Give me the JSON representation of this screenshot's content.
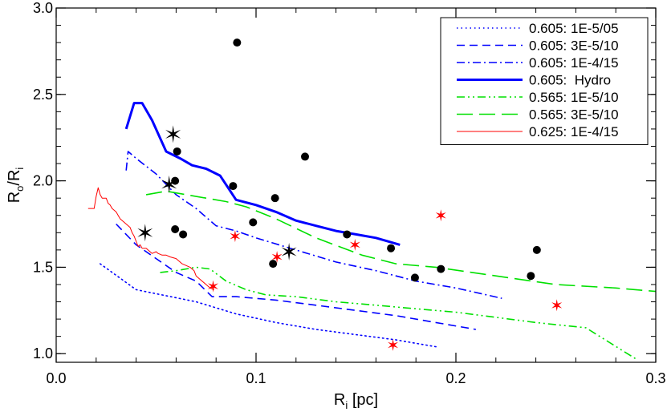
{
  "chart_data": {
    "type": "line",
    "title": "",
    "xlabel_main": "R",
    "xlabel_sub": "i",
    "xlabel_unit": " [pc]",
    "ylabel_num": "R",
    "ylabel_num_sub": "o",
    "ylabel_sep": "/",
    "ylabel_den": "R",
    "ylabel_den_sub": "i",
    "xlim": [
      0.0,
      0.3
    ],
    "ylim": [
      0.95,
      3.0
    ],
    "x_ticks": [
      0.0,
      0.1,
      0.2,
      0.3
    ],
    "x_tick_labels": [
      "0.0",
      "0.1",
      "0.2",
      "0.3"
    ],
    "y_ticks": [
      1.0,
      1.5,
      2.0,
      2.5,
      3.0
    ],
    "y_tick_labels": [
      "1.0",
      "1.5",
      "2.0",
      "2.5",
      "3.0"
    ],
    "grid": false,
    "legend_position": "top-right",
    "series": [
      {
        "name": "0.605: 1E-5/05",
        "color": "#0000ff",
        "style": "dotted",
        "width": 1.6,
        "x": [
          0.022,
          0.04,
          0.07,
          0.09,
          0.11,
          0.13,
          0.15,
          0.17,
          0.19
        ],
        "y": [
          1.52,
          1.37,
          1.3,
          1.23,
          1.18,
          1.14,
          1.11,
          1.08,
          1.04
        ]
      },
      {
        "name": "0.605: 3E-5/10",
        "color": "#0000ff",
        "style": "dashed",
        "width": 1.6,
        "x": [
          0.03,
          0.04,
          0.05,
          0.06,
          0.07,
          0.078,
          0.09,
          0.11,
          0.13,
          0.15,
          0.17,
          0.19,
          0.21
        ],
        "y": [
          1.75,
          1.63,
          1.55,
          1.47,
          1.42,
          1.33,
          1.33,
          1.31,
          1.28,
          1.25,
          1.22,
          1.18,
          1.14
        ]
      },
      {
        "name": "0.605: 1E-4/15",
        "color": "#0000ff",
        "style": "dashdot",
        "width": 1.6,
        "x": [
          0.035,
          0.036,
          0.04,
          0.05,
          0.06,
          0.07,
          0.08,
          0.09,
          0.1,
          0.12,
          0.14,
          0.16,
          0.18,
          0.2,
          0.223
        ],
        "y": [
          2.06,
          2.17,
          2.13,
          2.04,
          1.92,
          1.84,
          1.74,
          1.71,
          1.67,
          1.6,
          1.53,
          1.48,
          1.42,
          1.38,
          1.32
        ]
      },
      {
        "name": "0.605:  Hydro",
        "color": "#0000ff",
        "style": "solid",
        "width": 3,
        "x": [
          0.035,
          0.039,
          0.043,
          0.048,
          0.055,
          0.062,
          0.068,
          0.075,
          0.082,
          0.09,
          0.1,
          0.11,
          0.12,
          0.13,
          0.14,
          0.15,
          0.16,
          0.172
        ],
        "y": [
          2.3,
          2.45,
          2.45,
          2.35,
          2.17,
          2.13,
          2.09,
          2.07,
          2.03,
          1.89,
          1.86,
          1.82,
          1.77,
          1.74,
          1.71,
          1.69,
          1.67,
          1.63
        ]
      },
      {
        "name": "0.565: 1E-5/10",
        "color": "#00e000",
        "style": "dashdotdot",
        "width": 1.6,
        "x": [
          0.052,
          0.06,
          0.07,
          0.077,
          0.085,
          0.095,
          0.105,
          0.12,
          0.14,
          0.16,
          0.18,
          0.2,
          0.22,
          0.24,
          0.265,
          0.29
        ],
        "y": [
          1.47,
          1.48,
          1.5,
          1.49,
          1.42,
          1.37,
          1.34,
          1.33,
          1.3,
          1.28,
          1.26,
          1.24,
          1.21,
          1.18,
          1.15,
          0.97
        ]
      },
      {
        "name": "0.565: 3E-5/10",
        "color": "#00e000",
        "style": "longdash",
        "width": 1.6,
        "x": [
          0.045,
          0.055,
          0.065,
          0.075,
          0.085,
          0.095,
          0.11,
          0.13,
          0.153,
          0.17,
          0.19,
          0.22,
          0.25,
          0.28,
          0.3
        ],
        "y": [
          1.92,
          1.94,
          1.92,
          1.9,
          1.88,
          1.85,
          1.78,
          1.67,
          1.57,
          1.52,
          1.5,
          1.45,
          1.4,
          1.38,
          1.36
        ]
      },
      {
        "name": "0.625: 1E-4/15",
        "color": "#ff0000",
        "style": "solid",
        "width": 1,
        "x": [
          0.016,
          0.019,
          0.02,
          0.021,
          0.022,
          0.023,
          0.025,
          0.026,
          0.027,
          0.028,
          0.03,
          0.031,
          0.032,
          0.035,
          0.037,
          0.038,
          0.039,
          0.041,
          0.042,
          0.043,
          0.045,
          0.046,
          0.048,
          0.05,
          0.051,
          0.053,
          0.055,
          0.057,
          0.06,
          0.063,
          0.067,
          0.069,
          0.07,
          0.073,
          0.075,
          0.077,
          0.079
        ],
        "y": [
          1.84,
          1.84,
          1.91,
          1.96,
          1.92,
          1.9,
          1.9,
          1.87,
          1.86,
          1.84,
          1.82,
          1.8,
          1.78,
          1.75,
          1.73,
          1.7,
          1.68,
          1.62,
          1.63,
          1.61,
          1.61,
          1.6,
          1.58,
          1.59,
          1.58,
          1.57,
          1.57,
          1.56,
          1.55,
          1.52,
          1.5,
          1.48,
          1.45,
          1.42,
          1.4,
          1.38,
          1.37
        ]
      }
    ],
    "points_black_circles": {
      "color": "#000000",
      "x": [
        0.0905,
        0.0605,
        0.1245,
        0.0595,
        0.0885,
        0.1095,
        0.0985,
        0.0595,
        0.0635,
        0.1455,
        0.1675,
        0.1085,
        0.1795,
        0.1925,
        0.2405,
        0.2375
      ],
      "y": [
        2.8,
        2.17,
        2.14,
        2.0,
        1.97,
        1.9,
        1.76,
        1.72,
        1.69,
        1.69,
        1.61,
        1.52,
        1.44,
        1.49,
        1.6,
        1.45
      ]
    },
    "points_black_stars": {
      "color": "#000000",
      "x": [
        0.0585,
        0.0445,
        0.0565,
        0.1165
      ],
      "y": [
        2.27,
        1.7,
        1.98,
        1.59
      ]
    },
    "points_red_stars": {
      "color": "#ff0000",
      "x": [
        0.0895,
        0.1105,
        0.1495,
        0.1925,
        0.0785,
        0.2505,
        0.1685
      ],
      "y": [
        1.68,
        1.56,
        1.63,
        1.8,
        1.39,
        1.28,
        1.05
      ]
    }
  }
}
